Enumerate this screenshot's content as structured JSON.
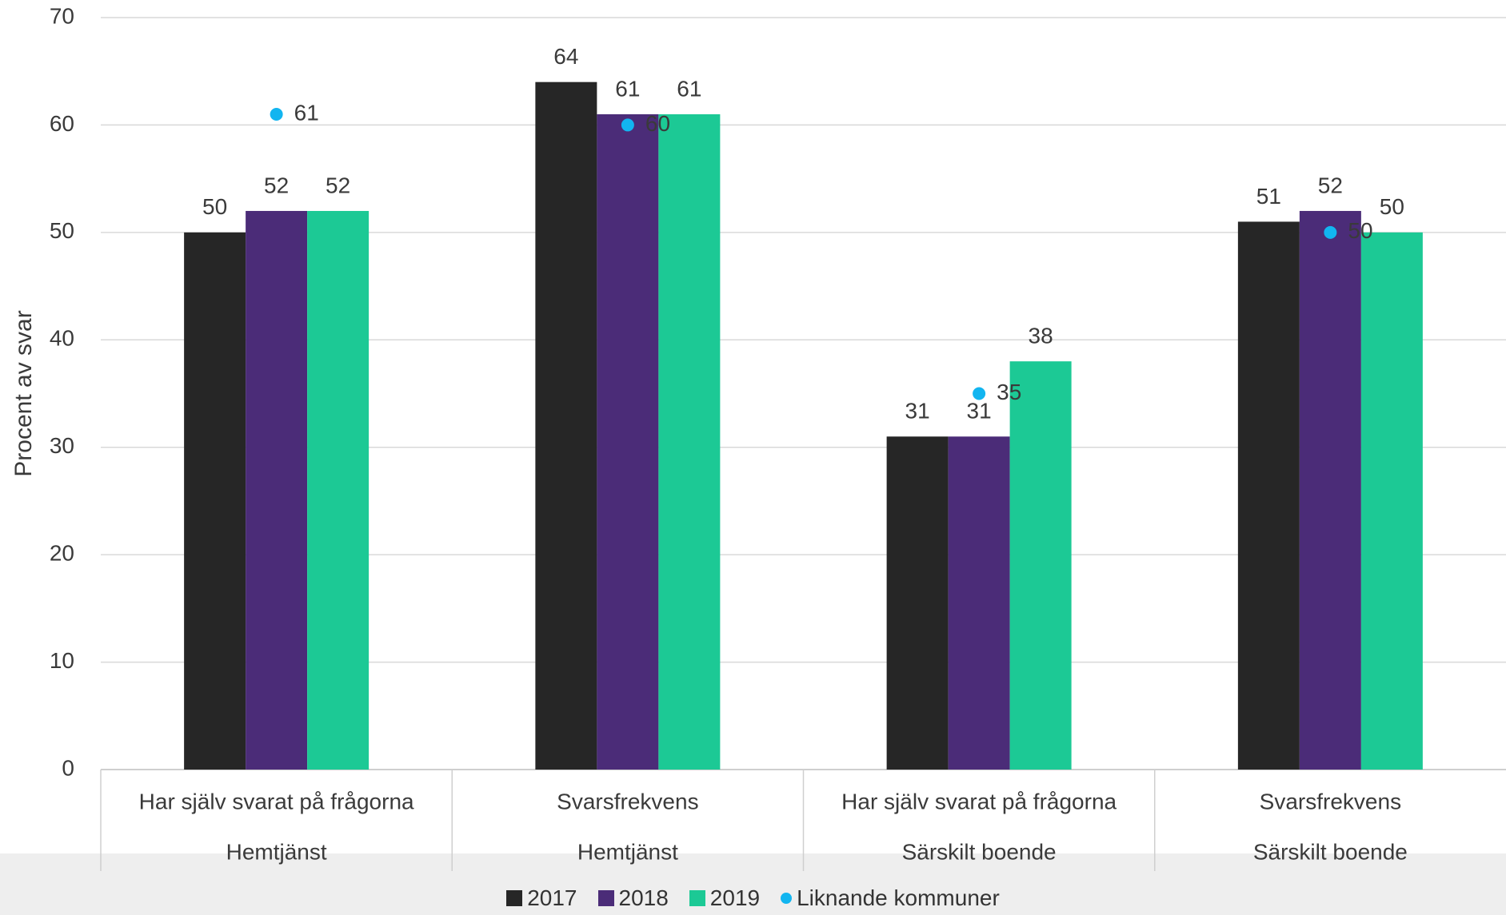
{
  "chart_data": {
    "type": "bar",
    "ylabel": "Procent av svar",
    "ylim": [
      0,
      70
    ],
    "yticks": [
      "0",
      "10",
      "20",
      "30",
      "40",
      "50",
      "60",
      "70"
    ],
    "grid": true,
    "categories": [
      {
        "label": "Har själv svarat på frågorna",
        "group": "Hemtjänst"
      },
      {
        "label": "Svarsfrekvens",
        "group": "Hemtjänst"
      },
      {
        "label": "Har själv svarat på frågorna",
        "group": "Särskilt boende"
      },
      {
        "label": "Svarsfrekvens",
        "group": "Särskilt boende"
      }
    ],
    "series": [
      {
        "name": "2017",
        "kind": "bar",
        "color": "#262626",
        "values": [
          50,
          64,
          31,
          51
        ]
      },
      {
        "name": "2018",
        "kind": "bar",
        "color": "#4b2c78",
        "values": [
          52,
          61,
          31,
          52
        ]
      },
      {
        "name": "2019",
        "kind": "bar",
        "color": "#1cc995",
        "values": [
          52,
          61,
          38,
          50
        ]
      },
      {
        "name": "Liknande kommuner",
        "kind": "marker",
        "color": "#12b5f0",
        "values": [
          61,
          60,
          35,
          50
        ]
      }
    ],
    "legend_position": "bottom"
  }
}
